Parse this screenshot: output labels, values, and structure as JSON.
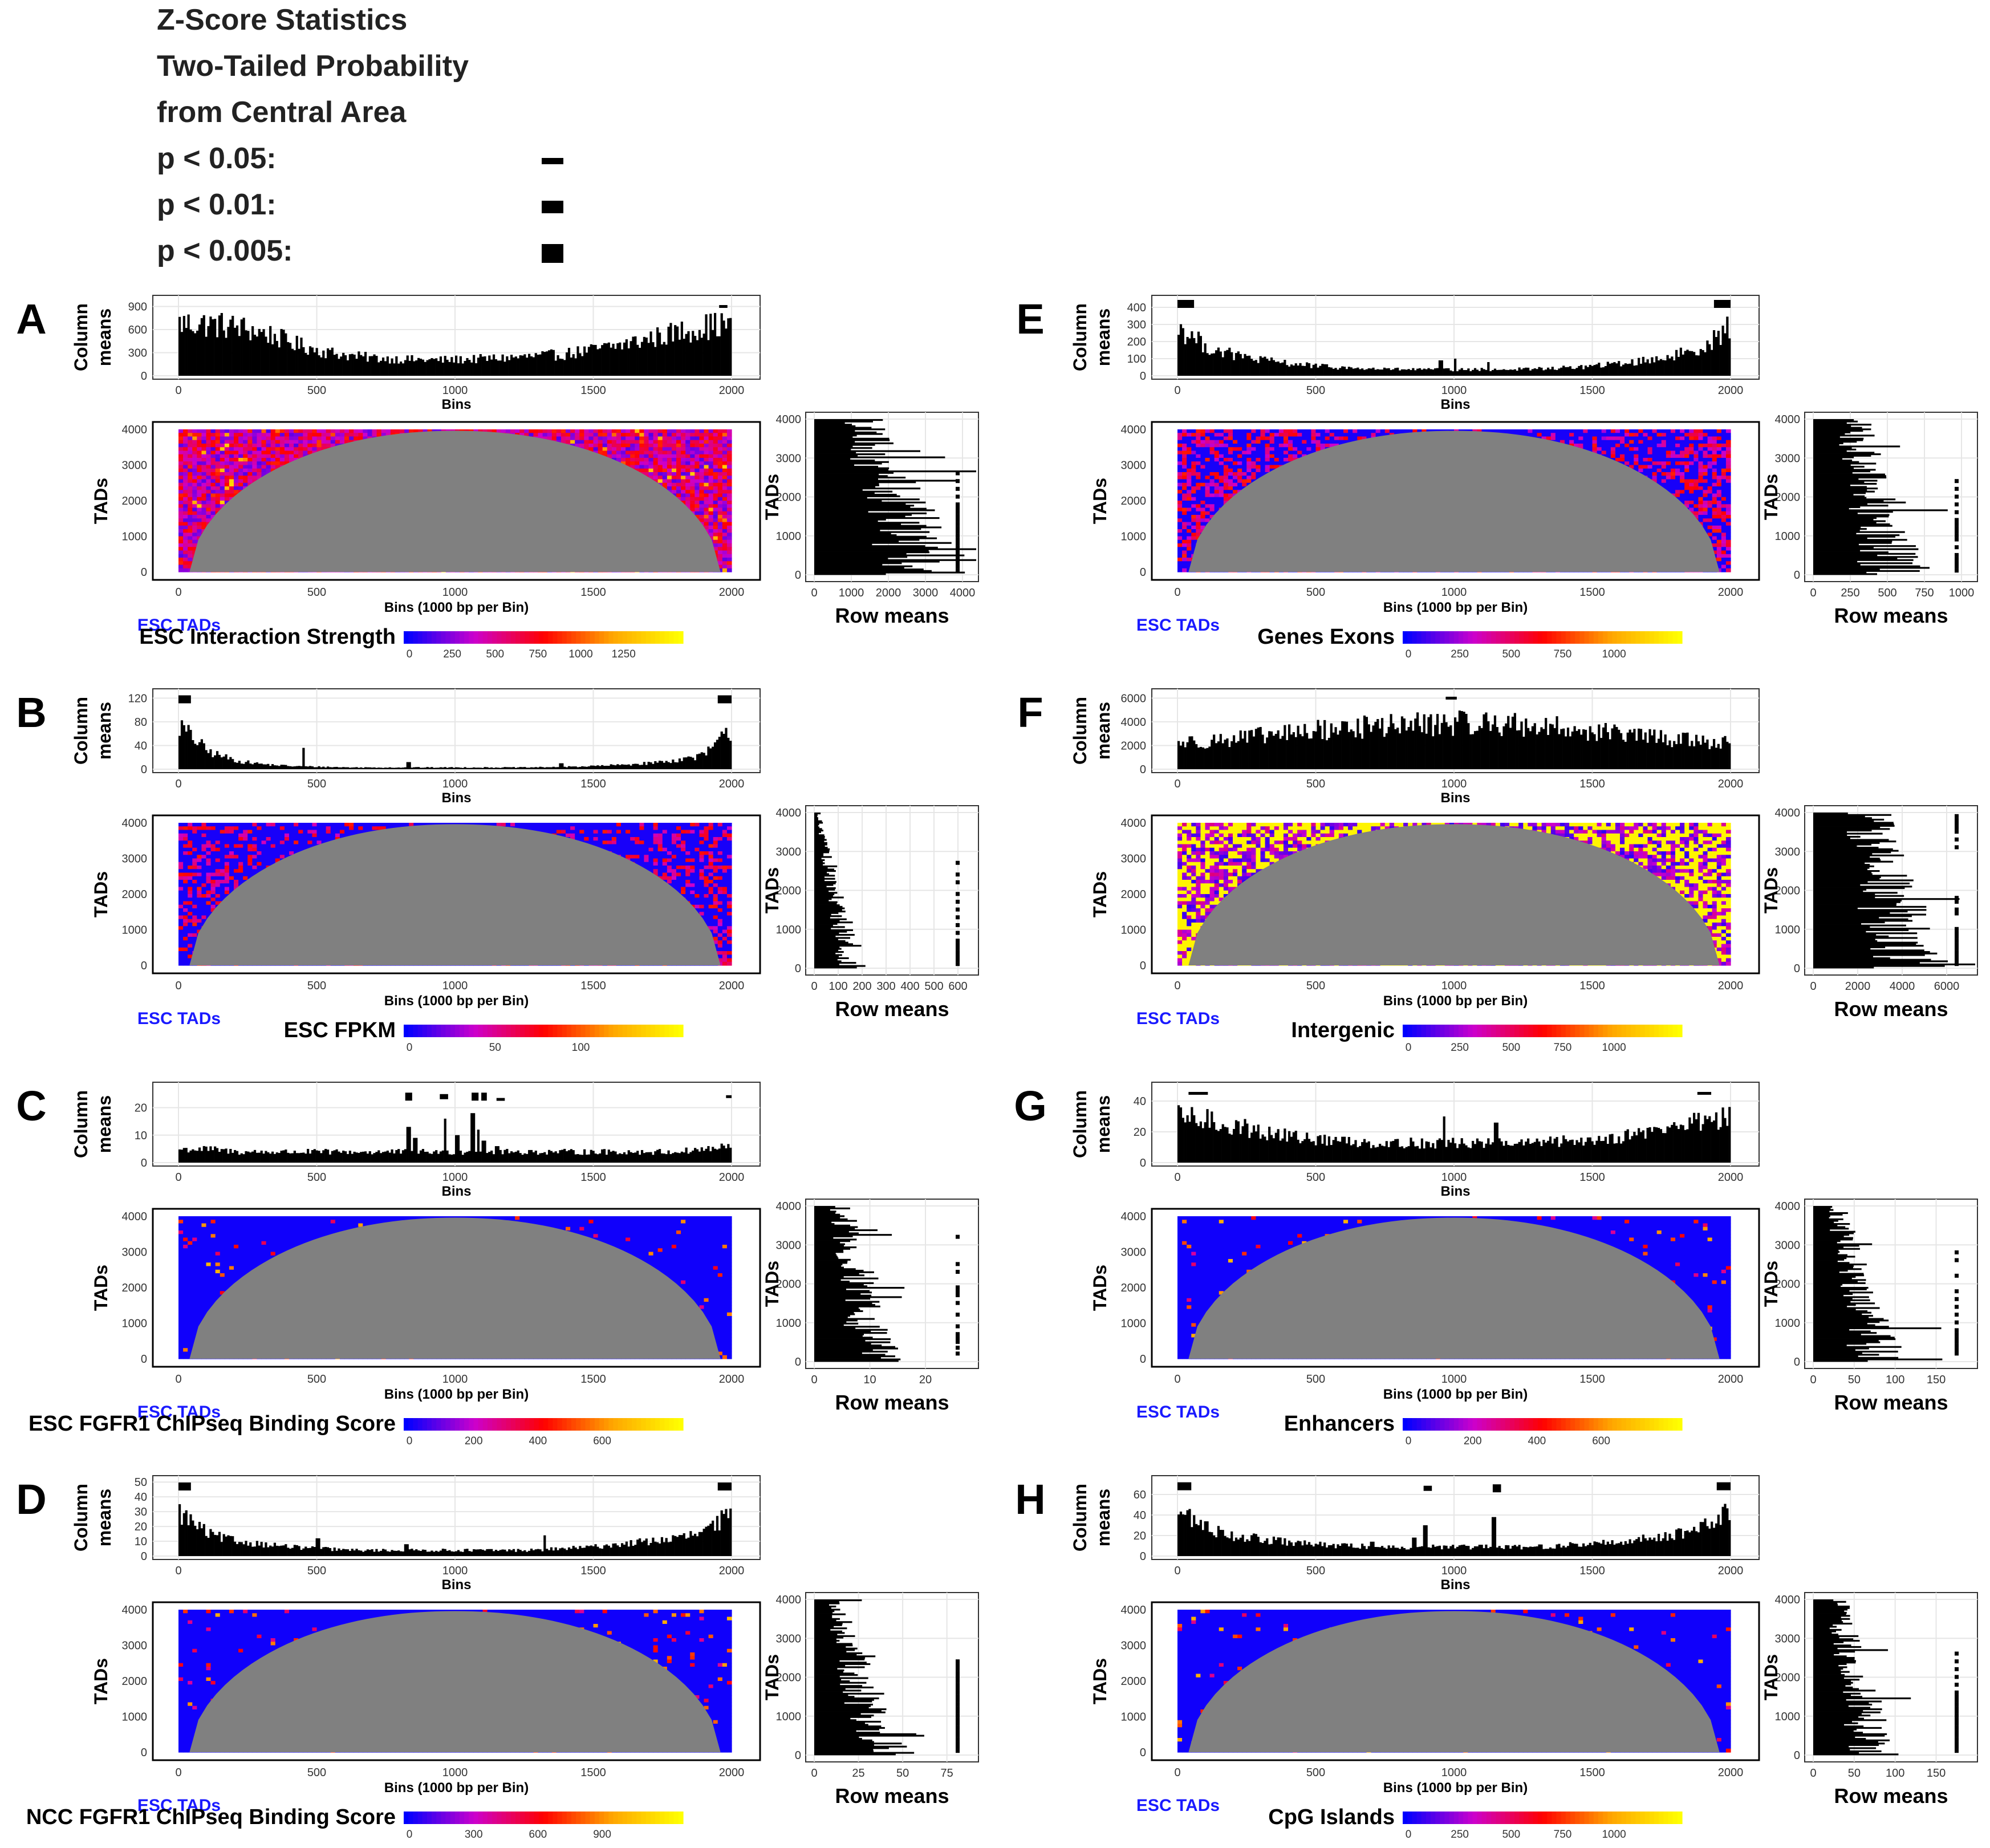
{
  "legend": {
    "lines": [
      "Z-Score Statistics",
      "Two-Tailed Probability",
      "from Central Area"
    ],
    "levels": [
      {
        "label": "p < 0.05:",
        "thickness": "thin"
      },
      {
        "label": "p < 0.01:",
        "thickness": "medium"
      },
      {
        "label": "p < 0.005:",
        "thickness": "thick"
      }
    ]
  },
  "colors": {
    "scale_low": "#0000ff",
    "scale_mid1": "#cc00cc",
    "scale_mid2": "#ff0000",
    "scale_mid3": "#ffa500",
    "scale_high": "#ffff00",
    "masked": "#808080",
    "bars": "#000000",
    "tad_label": "#1a1aff"
  },
  "common": {
    "col_ylabel_1": "Column",
    "col_ylabel_2": "means",
    "col_xlabel": "Bins",
    "heat_ylabel": "TADs",
    "heat_xlabel": "Bins (1000 bp per Bin)",
    "heat_sublabel": "ESC TADs",
    "row_xlabel": "Row means",
    "row_ylabel": "TADs",
    "bin_ticks": [
      0,
      500,
      1000,
      1500,
      2000
    ],
    "tad_ticks": [
      0,
      1000,
      2000,
      3000,
      4000
    ]
  },
  "chart_data": [
    {
      "type": "heatmap",
      "letter": "A",
      "variable": "ESC Interaction Strength",
      "heat_profile": "rich",
      "colorbar_ticks": [
        "0",
        "250",
        "500",
        "750",
        "1000",
        "1250"
      ],
      "column_means": {
        "type": "bar",
        "yticks": [
          0,
          300,
          600,
          900
        ],
        "ylim": [
          0,
          1000
        ],
        "profile": [
          700,
          690,
          650,
          560,
          420,
          320,
          260,
          230,
          215,
          210,
          220,
          235,
          255,
          280,
          330,
          400,
          480,
          570,
          650,
          700
        ],
        "spikes": [],
        "sig": [
          {
            "x0": 1955,
            "x1": 1985,
            "y": 900,
            "level": "thin"
          }
        ]
      },
      "row_means": {
        "type": "bar",
        "xticks": [
          "0",
          "1000",
          "2000",
          "3000",
          "4000"
        ],
        "xmax": 4200,
        "scale": [
          1300,
          3200
        ],
        "marks": [
          100,
          200,
          300,
          400,
          500,
          600,
          700,
          800,
          900,
          1000,
          1100,
          1200,
          1300,
          1400,
          1500,
          1600,
          1700,
          1800,
          2000,
          2200,
          2400,
          2600
        ]
      }
    },
    {
      "type": "heatmap",
      "letter": "B",
      "variable": "ESC FPKM",
      "heat_profile": "low",
      "colorbar_ticks": [
        "0",
        "50",
        "100"
      ],
      "column_means": {
        "type": "bar",
        "yticks": [
          0,
          40,
          80,
          120
        ],
        "ylim": [
          0,
          130
        ],
        "profile": [
          75,
          30,
          14,
          8,
          5,
          4,
          3,
          3,
          3,
          3,
          3,
          3,
          3,
          4,
          5,
          7,
          10,
          15,
          24,
          70
        ],
        "spikes": [
          [
            448,
            36
          ],
          [
            830,
            12
          ],
          [
            1380,
            10
          ]
        ],
        "sig": [
          {
            "x0": 0,
            "x1": 45,
            "y": 118,
            "level": "thick"
          },
          {
            "x0": 1950,
            "x1": 2000,
            "y": 118,
            "level": "thick"
          }
        ]
      },
      "row_means": {
        "type": "bar",
        "xticks": [
          "0",
          "100",
          "200",
          "300",
          "400",
          "500",
          "600"
        ],
        "xmax": 650,
        "scale": [
          20,
          160
        ],
        "marks": [
          100,
          200,
          300,
          400,
          500,
          600,
          700,
          900,
          1100,
          1300,
          1500,
          1700,
          1900,
          2200,
          2400,
          2700
        ]
      }
    },
    {
      "type": "heatmap",
      "letter": "C",
      "variable": "ESC FGFR1 ChIPseq Binding Score",
      "heat_profile": "sparse",
      "colorbar_ticks": [
        "0",
        "200",
        "400",
        "600"
      ],
      "column_means": {
        "type": "bar",
        "yticks": [
          0,
          10,
          20
        ],
        "ylim": [
          0,
          28
        ],
        "profile": [
          5,
          5,
          4,
          4,
          4,
          4,
          4,
          4,
          4,
          4,
          4,
          4,
          4,
          4,
          4,
          4,
          4,
          4,
          5,
          6
        ],
        "spikes": [
          [
            830,
            13
          ],
          [
            850,
            9
          ],
          [
            960,
            16
          ],
          [
            1005,
            10
          ],
          [
            1060,
            18
          ],
          [
            1080,
            12
          ],
          [
            1100,
            8
          ],
          [
            1150,
            6
          ]
        ],
        "sig": [
          {
            "x0": 820,
            "x1": 845,
            "y": 24,
            "level": "thick"
          },
          {
            "x0": 945,
            "x1": 975,
            "y": 24,
            "level": "medium"
          },
          {
            "x0": 1060,
            "x1": 1085,
            "y": 24,
            "level": "thick"
          },
          {
            "x0": 1095,
            "x1": 1115,
            "y": 24,
            "level": "thick"
          },
          {
            "x0": 1150,
            "x1": 1180,
            "y": 23,
            "level": "thin"
          },
          {
            "x0": 1980,
            "x1": 2000,
            "y": 24,
            "level": "thin"
          }
        ]
      },
      "row_means": {
        "type": "bar",
        "xticks": [
          "0",
          "10",
          "20"
        ],
        "xmax": 28,
        "scale": [
          5,
          11
        ],
        "marks": [
          200,
          350,
          500,
          600,
          700,
          900,
          1200,
          1500,
          1700,
          1800,
          1900,
          2300,
          2500,
          3200
        ]
      }
    },
    {
      "type": "heatmap",
      "letter": "D",
      "variable": "NCC FGFR1 ChIPseq Binding Score",
      "heat_profile": "sparse",
      "colorbar_ticks": [
        "0",
        "300",
        "600",
        "900"
      ],
      "column_means": {
        "type": "bar",
        "yticks": [
          0,
          10,
          20,
          30,
          40,
          50
        ],
        "ylim": [
          0,
          52
        ],
        "profile": [
          30,
          15,
          10,
          8,
          6,
          5,
          4,
          4,
          4,
          4,
          4,
          4,
          4,
          5,
          6,
          8,
          10,
          12,
          16,
          30
        ],
        "spikes": [
          [
            500,
            12
          ],
          [
            820,
            8
          ],
          [
            1320,
            14
          ]
        ],
        "sig": [
          {
            "x0": 0,
            "x1": 45,
            "y": 47,
            "level": "thick"
          },
          {
            "x0": 1950,
            "x1": 2000,
            "y": 47,
            "level": "thick"
          }
        ]
      },
      "row_means": {
        "type": "bar",
        "xticks": [
          "0",
          "25",
          "50",
          "75"
        ],
        "xmax": 88,
        "scale": [
          12,
          40
        ],
        "marks": [
          100,
          200,
          300,
          400,
          500,
          600,
          700,
          800,
          900,
          1000,
          1100,
          1200,
          1300,
          1400,
          1500,
          1600,
          1700,
          1800,
          1900,
          2000,
          2100,
          2200,
          2300,
          2400
        ]
      }
    },
    {
      "type": "heatmap",
      "letter": "E",
      "variable": "Genes Exons",
      "heat_profile": "mid",
      "colorbar_ticks": [
        "0",
        "250",
        "500",
        "750",
        "1000"
      ],
      "column_means": {
        "type": "bar",
        "yticks": [
          0,
          100,
          200,
          300,
          400
        ],
        "ylim": [
          0,
          450
        ],
        "profile": [
          290,
          170,
          120,
          90,
          70,
          55,
          45,
          40,
          38,
          36,
          36,
          38,
          40,
          45,
          55,
          70,
          90,
          120,
          170,
          300
        ],
        "spikes": [
          [
            950,
            90
          ],
          [
            1000,
            100
          ],
          [
            1120,
            80
          ]
        ],
        "sig": [
          {
            "x0": 0,
            "x1": 60,
            "y": 420,
            "level": "thick"
          },
          {
            "x0": 1940,
            "x1": 2000,
            "y": 420,
            "level": "thick"
          }
        ]
      },
      "row_means": {
        "type": "bar",
        "xticks": [
          "0",
          "250",
          "500",
          "750",
          "1000"
        ],
        "xmax": 1050,
        "scale": [
          280,
          560
        ],
        "marks": [
          100,
          200,
          300,
          400,
          500,
          700,
          900,
          1000,
          1100,
          1200,
          1300,
          1400,
          1600,
          1800,
          2000,
          2200,
          2400
        ]
      }
    },
    {
      "type": "heatmap",
      "letter": "F",
      "variable": "Intergenic",
      "heat_profile": "high",
      "colorbar_ticks": [
        "0",
        "250",
        "500",
        "750",
        "1000"
      ],
      "column_means": {
        "type": "bar",
        "yticks": [
          0,
          2000,
          4000,
          6000
        ],
        "ylim": [
          0,
          6500
        ],
        "profile": [
          2300,
          2450,
          2650,
          2900,
          3150,
          3400,
          3600,
          3750,
          3850,
          3950,
          4000,
          3950,
          3800,
          3600,
          3350,
          3100,
          2850,
          2600,
          2450,
          2300
        ],
        "spikes": [],
        "sig": [
          {
            "x0": 970,
            "x1": 1010,
            "y": 6000,
            "level": "thin"
          }
        ]
      },
      "row_means": {
        "type": "bar",
        "xticks": [
          "0",
          "2000",
          "4000",
          "6000"
        ],
        "xmax": 7000,
        "scale": [
          2500,
          4400
        ],
        "marks": [
          100,
          200,
          300,
          400,
          500,
          600,
          700,
          800,
          900,
          1000,
          1400,
          1500,
          1700,
          1800,
          3100,
          3300,
          3500,
          3600,
          3700,
          3800,
          3900
        ]
      }
    },
    {
      "type": "heatmap",
      "letter": "G",
      "variable": "Enhancers",
      "heat_profile": "sparse",
      "colorbar_ticks": [
        "0",
        "200",
        "400",
        "600"
      ],
      "column_means": {
        "type": "bar",
        "yticks": [
          0,
          20,
          40
        ],
        "ylim": [
          0,
          50
        ],
        "profile": [
          30,
          28,
          24,
          20,
          17,
          15,
          14,
          13,
          13,
          13,
          13,
          13,
          13,
          14,
          15,
          17,
          20,
          24,
          28,
          32
        ],
        "spikes": [
          [
            960,
            30
          ],
          [
            1150,
            26
          ]
        ],
        "sig": [
          {
            "x0": 40,
            "x1": 110,
            "y": 45,
            "level": "thin"
          },
          {
            "x0": 1880,
            "x1": 1930,
            "y": 45,
            "level": "thin"
          }
        ]
      },
      "row_means": {
        "type": "bar",
        "xticks": [
          "0",
          "50",
          "100",
          "150"
        ],
        "xmax": 190,
        "scale": [
          30,
          80
        ],
        "marks": [
          200,
          300,
          400,
          500,
          600,
          700,
          800,
          1000,
          1200,
          1400,
          1600,
          1800,
          2200,
          2600,
          2800
        ]
      }
    },
    {
      "type": "heatmap",
      "letter": "H",
      "variable": "CpG Islands",
      "heat_profile": "sparse",
      "colorbar_ticks": [
        "0",
        "250",
        "500",
        "750",
        "1000"
      ],
      "column_means": {
        "type": "bar",
        "yticks": [
          0,
          20,
          40,
          60
        ],
        "ylim": [
          0,
          75
        ],
        "profile": [
          45,
          28,
          20,
          16,
          13,
          11,
          10,
          9,
          9,
          9,
          9,
          9,
          9,
          10,
          12,
          14,
          17,
          22,
          28,
          46
        ],
        "spikes": [
          [
            890,
            30
          ],
          [
            1140,
            38
          ],
          [
            700,
            14
          ],
          [
            850,
            18
          ]
        ],
        "sig": [
          {
            "x0": 0,
            "x1": 50,
            "y": 68,
            "level": "thick"
          },
          {
            "x0": 890,
            "x1": 920,
            "y": 66,
            "level": "medium"
          },
          {
            "x0": 1140,
            "x1": 1170,
            "y": 66,
            "level": "thick"
          },
          {
            "x0": 1950,
            "x1": 2000,
            "y": 68,
            "level": "thick"
          }
        ]
      },
      "row_means": {
        "type": "bar",
        "xticks": [
          "0",
          "50",
          "100",
          "150"
        ],
        "xmax": 190,
        "scale": [
          30,
          75
        ],
        "marks": [
          100,
          200,
          300,
          400,
          500,
          600,
          700,
          800,
          900,
          1000,
          1100,
          1200,
          1300,
          1400,
          1500,
          1600,
          1800,
          2000,
          2200,
          2400,
          2600
        ]
      }
    }
  ]
}
